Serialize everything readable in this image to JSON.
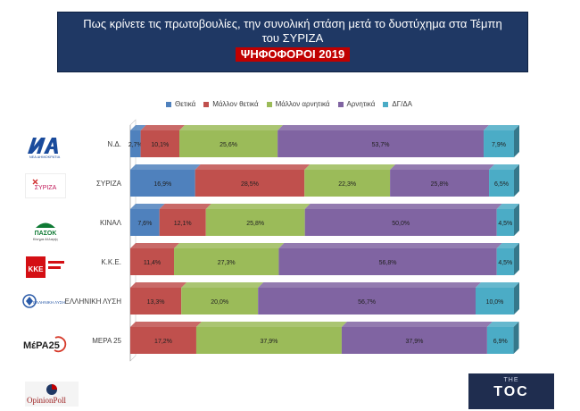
{
  "header": {
    "title_line1": "Πως κρίνετε τις πρωτοβουλίες, την συνολική στάση μετά το δυστύχημα στα Τέμπη",
    "title_line2": "του ΣΥΡΙΖΑ",
    "subtitle_tag": "ΨΗΦΟΦΟΡΟΙ 2019"
  },
  "logos": {
    "nd_text": "ΝΕΑ ΔΗΜΟΚΡΑΤΙΑ",
    "syriza_text": "ΣΥΡΙΖΑ",
    "kinal_text": "ΠΑΣΟΚ",
    "kinal_sub": "Κίνημα Αλλαγής",
    "kke_text": "ΚΚΕ",
    "el_text": "ΕΛΛΗΝΙΚΗ ΛΥΣΗ",
    "mera_text": "ΜέΡΑ25"
  },
  "footer": {
    "left_brand": "OpinionPoll",
    "right_small": "THE",
    "right_big": "TOC"
  },
  "colors": {
    "positive": "#4f81bd",
    "rather_positive": "#c0504d",
    "rather_negative": "#9bbb59",
    "negative": "#8064a2",
    "dk_na": "#4bacc6"
  },
  "chart_data": {
    "type": "bar",
    "orientation": "horizontal",
    "stacked": true,
    "percent_stacked": true,
    "categories": [
      "Ν.Δ.",
      "ΣΥΡΙΖΑ",
      "ΚΙΝΑΛ",
      "Κ.Κ.Ε.",
      "ΕΛΛΗΝΙΚΗ ΛΥΣΗ",
      "ΜΕΡΑ 25"
    ],
    "series": [
      {
        "name": "Θετικά",
        "color": "#4f81bd",
        "values": [
          2.7,
          16.9,
          7.6,
          0,
          0,
          0
        ],
        "labels": [
          "2,7%",
          "16,9%",
          "7,6%",
          "",
          "",
          ""
        ]
      },
      {
        "name": "Μάλλον θετικά",
        "color": "#c0504d",
        "values": [
          10.1,
          28.5,
          12.1,
          11.4,
          13.3,
          17.2
        ],
        "labels": [
          "10,1%",
          "28,5%",
          "12,1%",
          "11,4%",
          "13,3%",
          "17,2%"
        ]
      },
      {
        "name": "Μάλλον αρνητικά",
        "color": "#9bbb59",
        "values": [
          25.6,
          22.3,
          25.8,
          27.3,
          20.0,
          37.9
        ],
        "labels": [
          "25,6%",
          "22,3%",
          "25,8%",
          "27,3%",
          "20,0%",
          "37,9%"
        ]
      },
      {
        "name": "Αρνητικά",
        "color": "#8064a2",
        "values": [
          53.7,
          25.8,
          50.0,
          56.8,
          56.7,
          37.9
        ],
        "labels": [
          "53,7%",
          "25,8%",
          "50,0%",
          "56,8%",
          "56,7%",
          "37,9%"
        ]
      },
      {
        "name": "ΔΓ/ΔΑ",
        "color": "#4bacc6",
        "values": [
          7.9,
          6.5,
          4.5,
          4.5,
          10.0,
          6.9
        ],
        "labels": [
          "7,9%",
          "6,5%",
          "4,5%",
          "4,5%",
          "10,0%",
          "6,9%"
        ]
      }
    ],
    "legend_position": "top",
    "xlim": [
      0,
      100
    ]
  }
}
